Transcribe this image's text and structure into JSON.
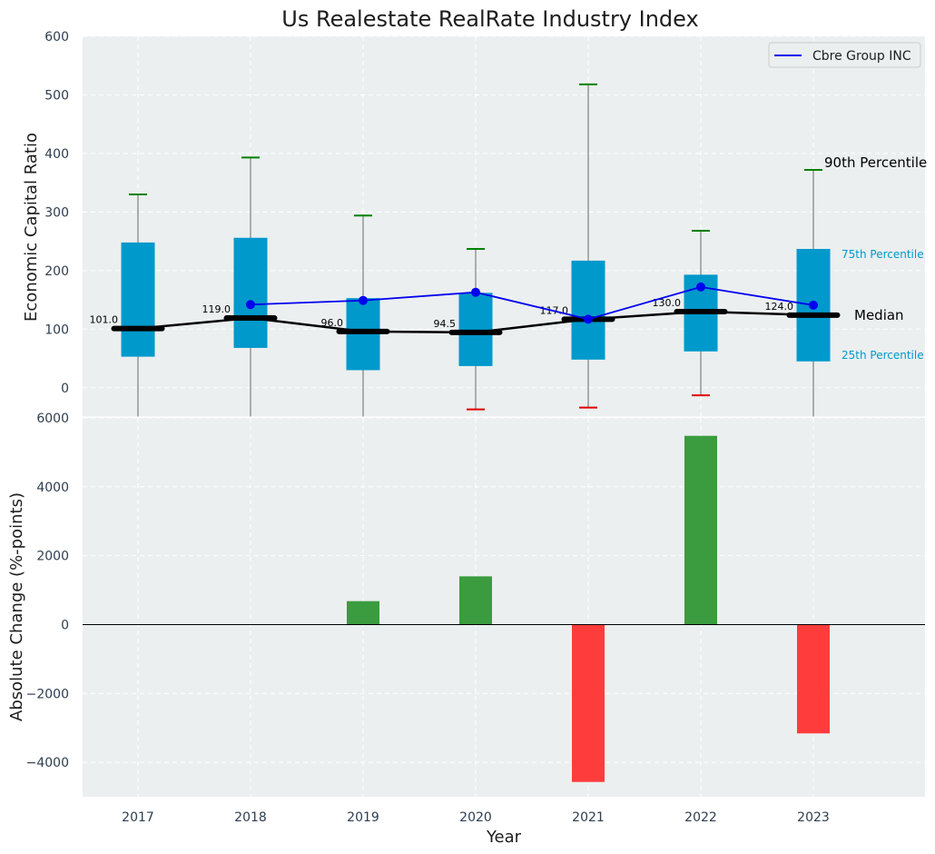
{
  "chart_data": [
    {
      "type": "box",
      "title": "Us Realestate RealRate Industry Index",
      "ylabel": "Economic Capital Ratio",
      "ylim": [
        -50,
        600
      ],
      "yticks": [
        0,
        100,
        200,
        300,
        400,
        500,
        600
      ],
      "categories": [
        "2017",
        "2018",
        "2019",
        "2020",
        "2021",
        "2022",
        "2023"
      ],
      "boxes": [
        {
          "p10": -50,
          "p25": 53,
          "median": 101.0,
          "p75": 248,
          "p90": 330,
          "median_label": "101.0"
        },
        {
          "p10": -50,
          "p25": 68,
          "median": 119.0,
          "p75": 256,
          "p90": 393,
          "median_label": "119.0"
        },
        {
          "p10": -50,
          "p25": 30,
          "median": 96.0,
          "p75": 153,
          "p90": 294,
          "median_label": "96.0"
        },
        {
          "p10": -37,
          "p25": 37,
          "median": 94.5,
          "p75": 162,
          "p90": 237,
          "median_label": "94.5"
        },
        {
          "p10": -34,
          "p25": 48,
          "median": 117.0,
          "p75": 217,
          "p90": 518,
          "median_label": "117.0"
        },
        {
          "p10": -13,
          "p25": 62,
          "median": 130.0,
          "p75": 193,
          "p90": 268,
          "median_label": "130.0"
        },
        {
          "p10": -50,
          "p25": 45,
          "median": 124.0,
          "p75": 237,
          "p90": 372,
          "median_label": "124.0"
        }
      ],
      "series": [
        {
          "name": "Cbre Group INC",
          "color": "#0000ee",
          "x": [
            "2018",
            "2019",
            "2020",
            "2021",
            "2022",
            "2023"
          ],
          "values": [
            142,
            149,
            163,
            117,
            172,
            141
          ]
        }
      ],
      "annotations": {
        "p90": "90th Percentile",
        "p75": "75th Percentile",
        "median": "Median",
        "p25": "25th Percentile"
      },
      "legend": "top-right",
      "grid": true
    },
    {
      "type": "bar",
      "xlabel": "Year",
      "ylabel": "Absolute Change (%-points)",
      "ylim": [
        -5000,
        6000
      ],
      "yticks": [
        -4000,
        -2000,
        0,
        2000,
        4000,
        6000
      ],
      "ytick_labels": [
        "−4000",
        "−2000",
        "0",
        "2000",
        "4000",
        "6000"
      ],
      "categories": [
        "2017",
        "2018",
        "2019",
        "2020",
        "2021",
        "2022",
        "2023"
      ],
      "values": [
        0,
        0,
        680,
        1400,
        -4570,
        5480,
        -3160
      ],
      "positive_color": "#3a9c3e",
      "negative_color": "#ff3c3c",
      "grid": true
    }
  ],
  "colors": {
    "panel_bg": "#ebeff0",
    "box_fill": "#0099cc",
    "whisker": "#808080",
    "p90_cap": "#008000",
    "p10_cap": "#e00000",
    "median_line": "#000000"
  }
}
